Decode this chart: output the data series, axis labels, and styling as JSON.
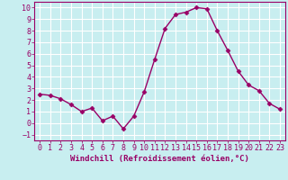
{
  "x": [
    0,
    1,
    2,
    3,
    4,
    5,
    6,
    7,
    8,
    9,
    10,
    11,
    12,
    13,
    14,
    15,
    16,
    17,
    18,
    19,
    20,
    21,
    22,
    23
  ],
  "y": [
    2.5,
    2.4,
    2.1,
    1.6,
    1.0,
    1.3,
    0.2,
    0.6,
    -0.5,
    0.6,
    2.7,
    5.5,
    8.2,
    9.4,
    9.6,
    10.0,
    9.9,
    8.0,
    6.3,
    4.5,
    3.3,
    2.8,
    1.7,
    1.2
  ],
  "line_color": "#990066",
  "marker": "D",
  "marker_size": 2.5,
  "line_width": 1.0,
  "bg_color": "#c8eef0",
  "grid_color": "#ffffff",
  "xlabel": "Windchill (Refroidissement éolien,°C)",
  "xlabel_fontsize": 6.5,
  "tick_fontsize": 6.0,
  "ylim": [
    -1.5,
    10.5
  ],
  "xlim": [
    -0.5,
    23.5
  ],
  "yticks": [
    -1,
    0,
    1,
    2,
    3,
    4,
    5,
    6,
    7,
    8,
    9,
    10
  ],
  "xticks": [
    0,
    1,
    2,
    3,
    4,
    5,
    6,
    7,
    8,
    9,
    10,
    11,
    12,
    13,
    14,
    15,
    16,
    17,
    18,
    19,
    20,
    21,
    22,
    23
  ]
}
